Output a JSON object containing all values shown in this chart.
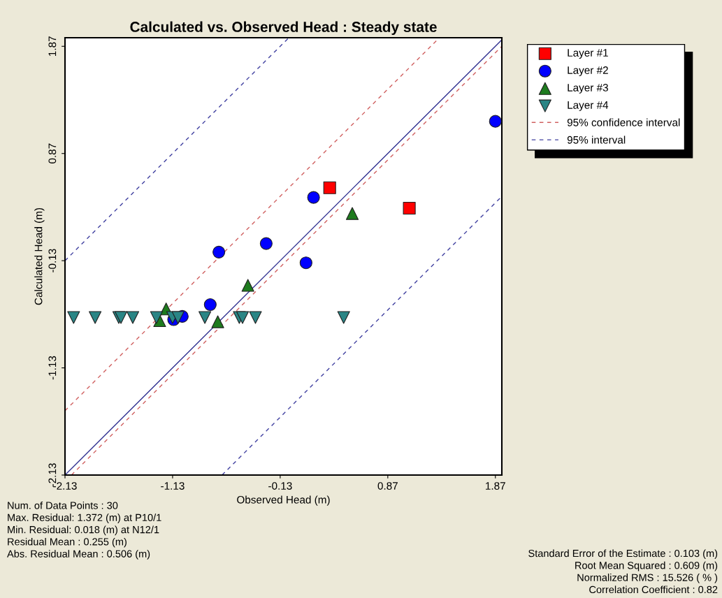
{
  "chart_data": {
    "type": "scatter",
    "title": "Calculated vs. Observed Head : Steady state",
    "xlabel": "Observed Head (m)",
    "ylabel": "Calculated Head (m)",
    "xlim": [
      -2.13,
      1.93
    ],
    "ylim": [
      -2.13,
      1.95
    ],
    "xticks": [
      -2.13,
      -1.13,
      -0.13,
      0.87,
      1.87
    ],
    "yticks": [
      -2.13,
      -1.13,
      -0.13,
      0.87,
      1.87
    ],
    "grid": false,
    "legend": "right",
    "series": [
      {
        "name": "Layer #1",
        "color": "#ff0000",
        "marker": "square",
        "x": [
          0.33,
          1.07
        ],
        "values": [
          0.55,
          0.36
        ]
      },
      {
        "name": "Layer #2",
        "color": "#0000ff",
        "marker": "circle",
        "x": [
          1.87,
          0.18,
          -0.7,
          -0.26,
          0.11,
          -0.78,
          -1.04,
          -1.12
        ],
        "values": [
          1.17,
          0.46,
          -0.05,
          0.03,
          -0.15,
          -0.54,
          -0.65,
          -0.68
        ]
      },
      {
        "name": "Layer #3",
        "color": "#1e7b1e",
        "marker": "triangle",
        "x": [
          0.54,
          -0.43,
          -1.19,
          -1.25,
          -0.71
        ],
        "values": [
          0.31,
          -0.36,
          -0.58,
          -0.69,
          -0.7
        ]
      },
      {
        "name": "Layer #4",
        "color": "#2a8585",
        "marker": "triangle_down",
        "x": [
          -2.05,
          -1.85,
          -1.63,
          -1.61,
          -1.5,
          -1.28,
          -1.13,
          -1.08,
          -0.83,
          -0.51,
          -0.48,
          -0.36,
          0.46
        ],
        "values": [
          -0.66,
          -0.66,
          -0.66,
          -0.66,
          -0.66,
          -0.66,
          -0.66,
          -0.66,
          -0.66,
          -0.66,
          -0.66,
          -0.66,
          -0.66
        ]
      },
      {
        "name": "95% confidence interval",
        "type": "line",
        "line_style": "dashed",
        "color": "#d06060",
        "x": [
          -2.13,
          1.35
        ],
        "values": [
          -1.53,
          1.95
        ]
      },
      {
        "name": null,
        "type": "line",
        "line_style": "dashed",
        "color": "#d06060",
        "x": [
          -2.07,
          1.93
        ],
        "values": [
          -2.13,
          1.87
        ]
      },
      {
        "name": "95% interval",
        "type": "line",
        "line_style": "dashed",
        "color": "#4040a0",
        "x": [
          -2.13,
          -0.05
        ],
        "values": [
          -0.13,
          1.95
        ]
      },
      {
        "name": null,
        "type": "line",
        "line_style": "dashed",
        "color": "#4040a0",
        "x": [
          -0.67,
          1.93
        ],
        "values": [
          -2.13,
          0.47
        ]
      },
      {
        "name": null,
        "type": "line",
        "line_style": "solid",
        "color": "#303090",
        "x": [
          -2.13,
          1.93
        ],
        "values": [
          -2.13,
          1.93
        ]
      }
    ],
    "annotations": [
      "Num. of Data Points : 30\nMax. Residual: 1.372 (m) at P10/1\nMin. Residual: 0.018 (m) at N12/1\nResidual Mean : 0.255 (m)\nAbs. Residual Mean : 0.506 (m)",
      "Standard Error of the Estimate : 0.103 (m)\nRoot Mean Squared : 0.609 (m)\nNormalized RMS : 15.526 ( % )\nCorrelation Coefficient : 0.82"
    ]
  }
}
